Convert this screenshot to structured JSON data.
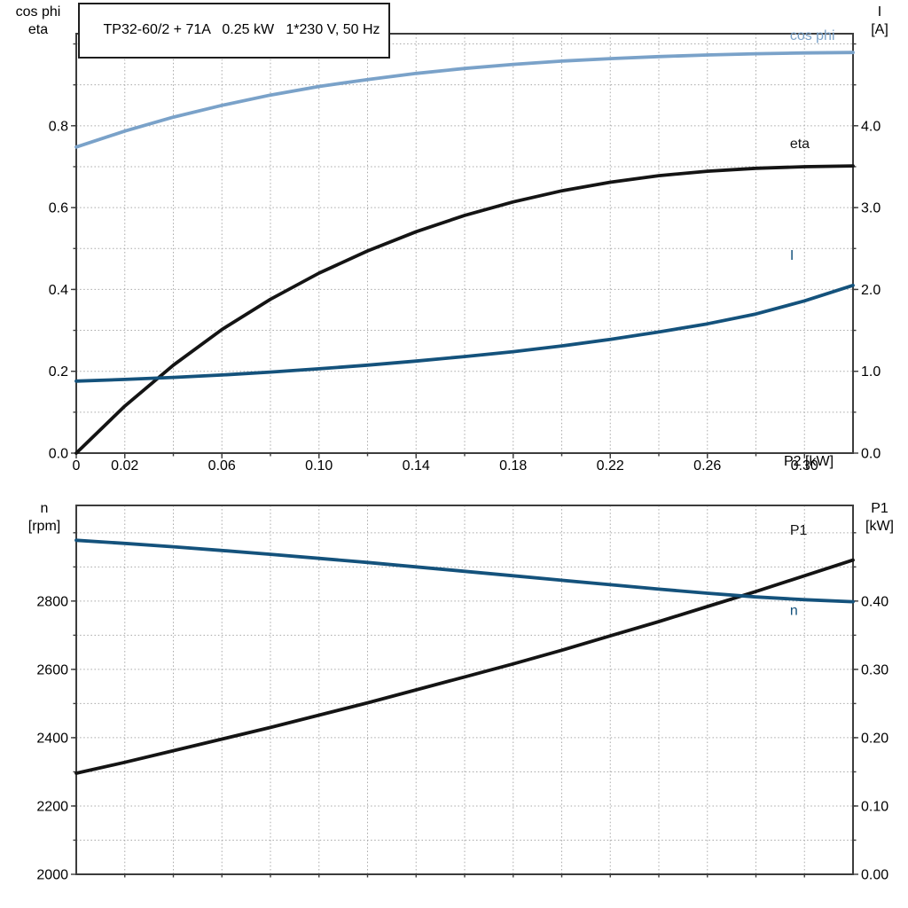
{
  "colors": {
    "black": "#141414",
    "blue": "#14527C",
    "lightblue": "#7AA2C9",
    "grid": "#A8A8A8",
    "axis": "#3C3C3C",
    "text": "#000000",
    "background": "#FFFFFF"
  },
  "axis_corner_labels": {
    "top_left": [
      "cos phi",
      "eta"
    ],
    "top_right": [
      "I",
      "[A]"
    ],
    "bottom_left": [
      "n",
      "[rpm]"
    ],
    "bottom_right": [
      "P1",
      "[kW]"
    ]
  },
  "chart_data": [
    {
      "type": "line",
      "title": "TP32-60/2 + 71A   0.25 kW   1*230 V, 50 Hz",
      "xlabel": "P2 [kW]",
      "xlim": [
        0,
        0.32
      ],
      "x_grid_step": 0.02,
      "x_ticks": {
        "values": [
          0,
          0.02,
          0.06,
          0.1,
          0.14,
          0.18,
          0.22,
          0.26,
          0.3
        ],
        "labels": [
          "0",
          "0.02",
          "0.06",
          "0.10",
          "0.14",
          "0.18",
          "0.22",
          "0.26",
          "0.30"
        ]
      },
      "left_axis": {
        "label": "cos phi / eta",
        "lim": [
          0,
          1.025
        ],
        "grid_step": 0.1,
        "ticks": {
          "values": [
            0,
            0.2,
            0.4,
            0.6,
            0.8
          ],
          "labels": [
            "0.0",
            "0.2",
            "0.4",
            "0.6",
            "0.8"
          ]
        }
      },
      "right_axis": {
        "label": "I [A]",
        "lim": [
          0,
          5.125
        ],
        "minor_step": 0.5,
        "ticks": {
          "values": [
            0,
            1,
            2,
            3,
            4
          ],
          "labels": [
            "0.0",
            "1.0",
            "2.0",
            "3.0",
            "4.0"
          ]
        }
      },
      "x": [
        0,
        0.02,
        0.04,
        0.06,
        0.08,
        0.1,
        0.12,
        0.14,
        0.16,
        0.18,
        0.2,
        0.22,
        0.24,
        0.26,
        0.28,
        0.3,
        0.32
      ],
      "series": [
        {
          "name": "cos phi",
          "axis": "left",
          "color": "lightblue",
          "label_x": 0.294,
          "label_y": 1.01,
          "y": [
            0.748,
            0.787,
            0.821,
            0.85,
            0.875,
            0.896,
            0.913,
            0.928,
            0.94,
            0.95,
            0.958,
            0.964,
            0.969,
            0.973,
            0.976,
            0.978,
            0.979
          ]
        },
        {
          "name": "eta",
          "axis": "left",
          "color": "black",
          "label_x": 0.294,
          "label_y": 0.745,
          "y": [
            0.0,
            0.115,
            0.215,
            0.302,
            0.376,
            0.44,
            0.494,
            0.541,
            0.581,
            0.614,
            0.641,
            0.662,
            0.678,
            0.689,
            0.696,
            0.7,
            0.702
          ]
        },
        {
          "name": "I",
          "axis": "right",
          "color": "blue",
          "label_x": 0.294,
          "label_y": 2.36,
          "y": [
            0.88,
            0.9,
            0.925,
            0.955,
            0.99,
            1.03,
            1.075,
            1.125,
            1.18,
            1.24,
            1.31,
            1.39,
            1.48,
            1.58,
            1.7,
            1.86,
            2.05
          ]
        }
      ]
    },
    {
      "type": "line",
      "title": "",
      "xlabel": "",
      "xlim": [
        0,
        0.32
      ],
      "x_grid_step": 0.02,
      "x_ticks": {
        "values": [],
        "labels": []
      },
      "left_axis": {
        "label": "n [rpm]",
        "lim": [
          2000,
          3080
        ],
        "grid_step": 100,
        "ticks": {
          "values": [
            2000,
            2200,
            2400,
            2600,
            2800
          ],
          "labels": [
            "2000",
            "2200",
            "2400",
            "2600",
            "2800"
          ]
        }
      },
      "right_axis": {
        "label": "P1 [kW]",
        "lim": [
          0,
          0.54
        ],
        "minor_step": 0.05,
        "ticks": {
          "values": [
            0,
            0.1,
            0.2,
            0.3,
            0.4
          ],
          "labels": [
            "0.00",
            "0.10",
            "0.20",
            "0.30",
            "0.40"
          ]
        }
      },
      "x": [
        0,
        0.02,
        0.04,
        0.06,
        0.08,
        0.1,
        0.12,
        0.14,
        0.16,
        0.18,
        0.2,
        0.22,
        0.24,
        0.26,
        0.28,
        0.3,
        0.32
      ],
      "series": [
        {
          "name": "P1",
          "axis": "right",
          "color": "black",
          "label_x": 0.294,
          "label_y": 0.497,
          "y": [
            0.148,
            0.164,
            0.181,
            0.198,
            0.215,
            0.233,
            0.251,
            0.27,
            0.289,
            0.308,
            0.328,
            0.349,
            0.37,
            0.392,
            0.414,
            0.437,
            0.46
          ]
        },
        {
          "name": "n",
          "axis": "left",
          "color": "blue",
          "label_x": 0.294,
          "label_y": 2760,
          "y": [
            2978,
            2969,
            2959,
            2948,
            2937,
            2925,
            2913,
            2900,
            2887,
            2874,
            2861,
            2848,
            2835,
            2823,
            2812,
            2804,
            2798
          ]
        }
      ]
    }
  ]
}
